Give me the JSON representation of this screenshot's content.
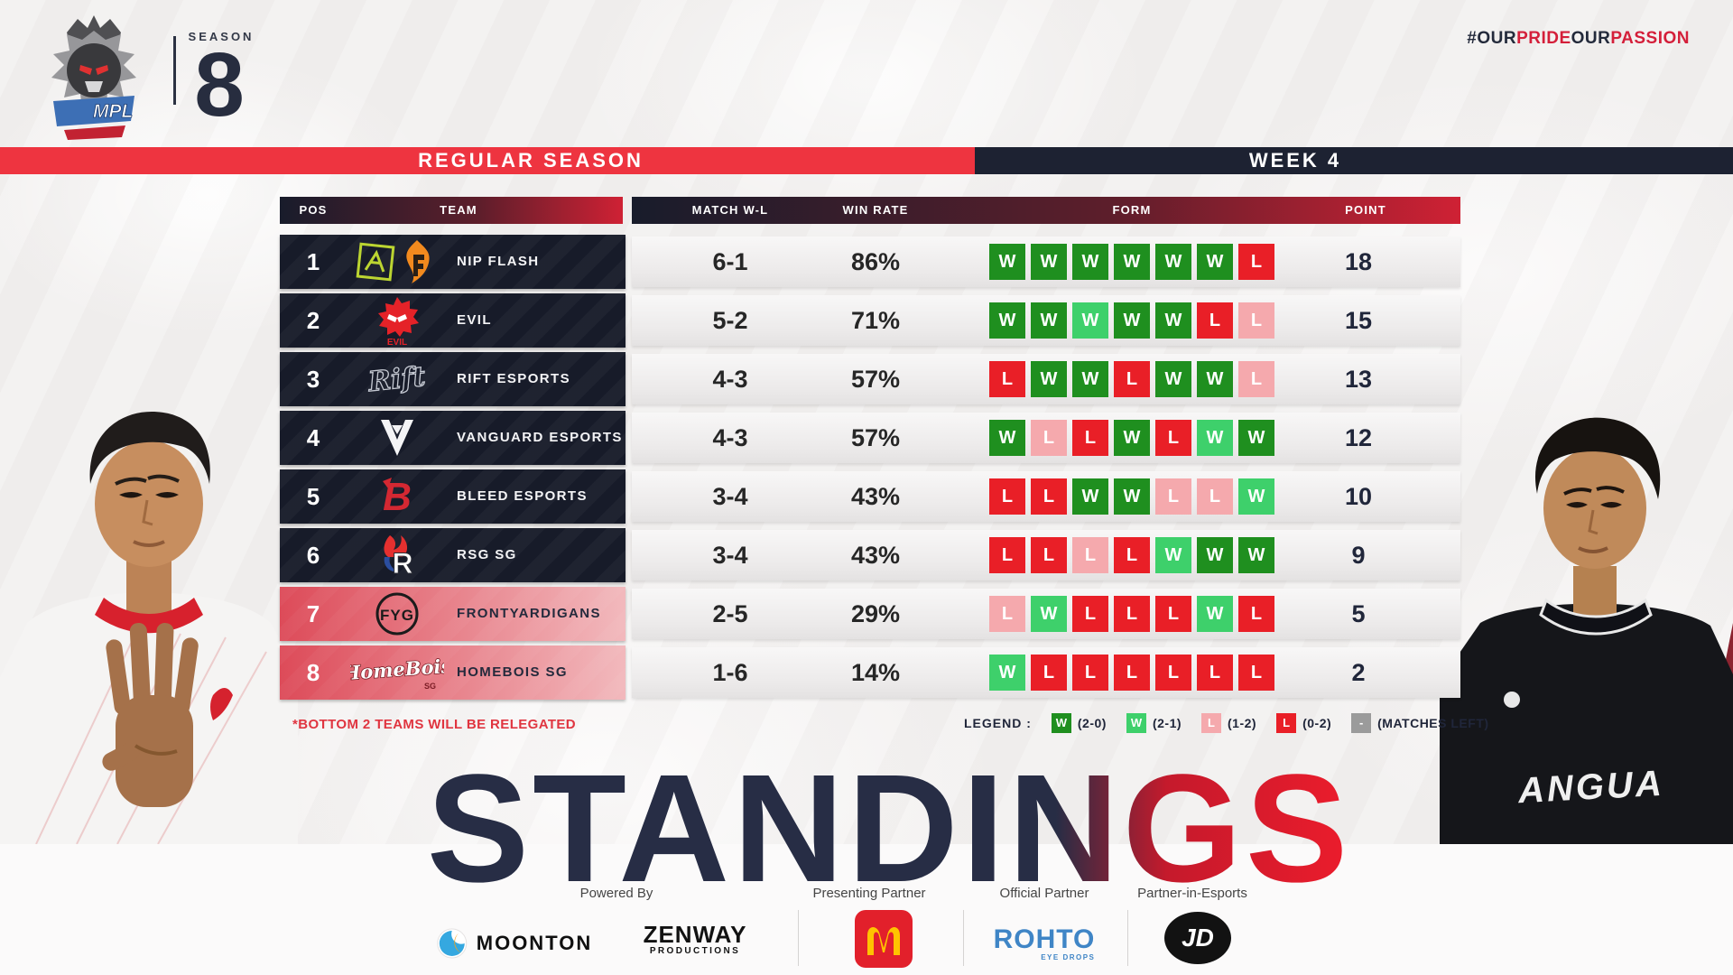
{
  "header": {
    "logo_text": "MPL",
    "season_label": "SEASON",
    "season_number": "8",
    "hashtag": [
      {
        "text": "#OUR",
        "tone": "dark"
      },
      {
        "text": "PRIDE",
        "tone": "red"
      },
      {
        "text": "OUR",
        "tone": "dark"
      },
      {
        "text": "PASSION",
        "tone": "red"
      }
    ]
  },
  "bands": {
    "left": "REGULAR SEASON",
    "right": "WEEK 4"
  },
  "chart_data": {
    "type": "table",
    "title": "STANDINGS",
    "columns": [
      "POS",
      "TEAM",
      "MATCH W-L",
      "WIN RATE",
      "FORM",
      "POINT"
    ],
    "rows": [
      {
        "pos": "1",
        "team": "NIP FLASH",
        "match_wl": "6-1",
        "win_rate": "86%",
        "form": [
          "W:w2",
          "W:w2",
          "W:w2",
          "W:w2",
          "W:w2",
          "W:w2",
          "L:l0"
        ],
        "points": "18",
        "relegation": false,
        "logo": "nip-flash"
      },
      {
        "pos": "2",
        "team": "EVIL",
        "match_wl": "5-2",
        "win_rate": "71%",
        "form": [
          "W:w2",
          "W:w2",
          "W:w1",
          "W:w2",
          "W:w2",
          "L:l0",
          "L:l1"
        ],
        "points": "15",
        "relegation": false,
        "logo": "evil"
      },
      {
        "pos": "3",
        "team": "RIFT ESPORTS",
        "match_wl": "4-3",
        "win_rate": "57%",
        "form": [
          "L:l0",
          "W:w2",
          "W:w2",
          "L:l0",
          "W:w2",
          "W:w2",
          "L:l1"
        ],
        "points": "13",
        "relegation": false,
        "logo": "rift"
      },
      {
        "pos": "4",
        "team": "VANGUARD ESPORTS",
        "match_wl": "4-3",
        "win_rate": "57%",
        "form": [
          "W:w2",
          "L:l1",
          "L:l0",
          "W:w2",
          "L:l0",
          "W:w1",
          "W:w2"
        ],
        "points": "12",
        "relegation": false,
        "logo": "vanguard"
      },
      {
        "pos": "5",
        "team": "BLEED ESPORTS",
        "match_wl": "3-4",
        "win_rate": "43%",
        "form": [
          "L:l0",
          "L:l0",
          "W:w2",
          "W:w2",
          "L:l1",
          "L:l1",
          "W:w1"
        ],
        "points": "10",
        "relegation": false,
        "logo": "bleed"
      },
      {
        "pos": "6",
        "team": "RSG SG",
        "match_wl": "3-4",
        "win_rate": "43%",
        "form": [
          "L:l0",
          "L:l0",
          "L:l1",
          "L:l0",
          "W:w1",
          "W:w2",
          "W:w2"
        ],
        "points": "9",
        "relegation": false,
        "logo": "rsg"
      },
      {
        "pos": "7",
        "team": "FRONTYARDIGANS",
        "match_wl": "2-5",
        "win_rate": "29%",
        "form": [
          "L:l1",
          "W:w1",
          "L:l0",
          "L:l0",
          "L:l0",
          "W:w1",
          "L:l0"
        ],
        "points": "5",
        "relegation": true,
        "logo": "fyg"
      },
      {
        "pos": "8",
        "team": "HOMEBOIS SG",
        "match_wl": "1-6",
        "win_rate": "14%",
        "form": [
          "W:w1",
          "L:l0",
          "L:l0",
          "L:l0",
          "L:l0",
          "L:l0",
          "L:l0"
        ],
        "points": "2",
        "relegation": true,
        "logo": "homebois"
      }
    ]
  },
  "note": "*BOTTOM 2 TEAMS WILL BE RELEGATED",
  "legend": {
    "label": "LEGEND :",
    "items": [
      {
        "glyph": "W",
        "type": "w2",
        "label": "(2-0)"
      },
      {
        "glyph": "W",
        "type": "w1",
        "label": "(2-1)"
      },
      {
        "glyph": "L",
        "type": "l1",
        "label": "(1-2)"
      },
      {
        "glyph": "L",
        "type": "l0",
        "label": "(0-2)"
      },
      {
        "glyph": "-",
        "type": "left",
        "label": "(MATCHES LEFT)"
      }
    ]
  },
  "title": {
    "dark_part": "STANDIN",
    "red_part": "GS"
  },
  "logo_texts": {
    "evil": "EVIL",
    "rift": "Rift",
    "bleed": "B",
    "rsg": "R",
    "fyg": "FYG",
    "homebois": "HomeBois",
    "homebois_sub": "SG"
  },
  "players": {
    "right_jersey_text": "ANGUA"
  },
  "footer": {
    "powered_by_label": "Powered By",
    "presenting_label": "Presenting Partner",
    "official_label": "Official Partner",
    "esports_label": "Partner-in-Esports",
    "moonton": "MOONTON",
    "zenway_line1": "ZENWAY",
    "zenway_line2": "PRODUCTIONS",
    "rohto": "ROHTO",
    "rohto_sub": "EYE DROPS",
    "jd": "JD"
  },
  "colors": {
    "band_red": "#ee3440",
    "dark_navy": "#1d2232",
    "accent_red": "#d41f3a",
    "win_2_0": "#1f8f1f",
    "win_2_1": "#3ed06b",
    "loss_1_2": "#f5a9ad",
    "loss_0_2": "#e91f27",
    "matches_left": "#9b9b9b",
    "maroon_shard": "#6f1f2a"
  }
}
